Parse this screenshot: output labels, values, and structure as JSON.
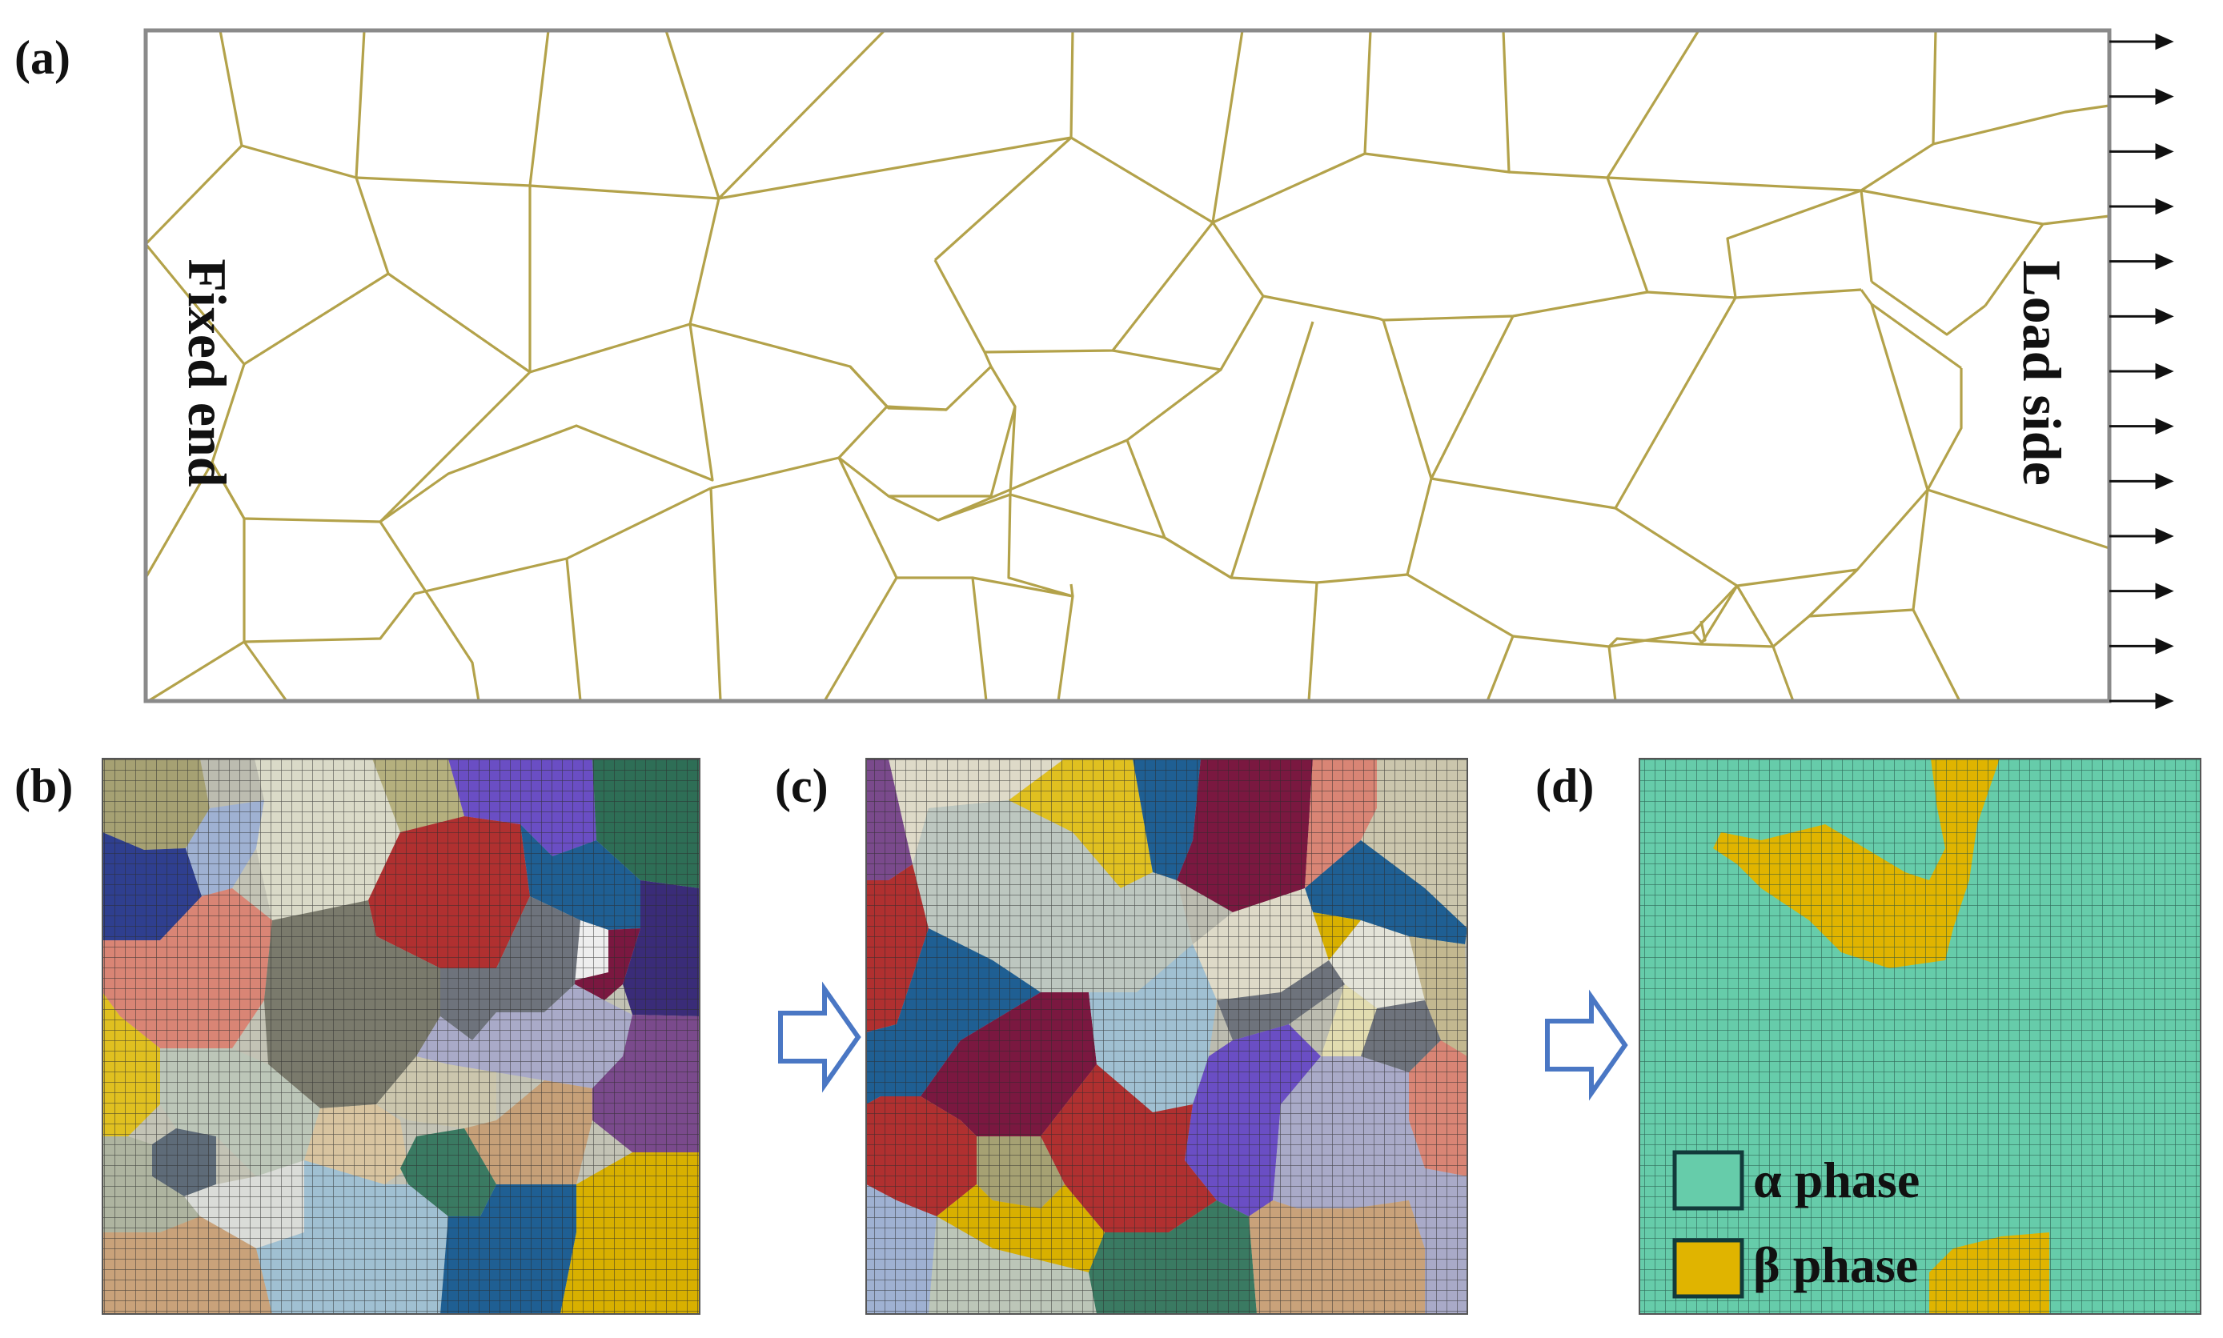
{
  "panels": {
    "a": {
      "label": "(a)",
      "fixed_end": "Fixed end",
      "load_side": "Load side"
    },
    "b": {
      "label": "(b)"
    },
    "c": {
      "label": "(c)"
    },
    "d": {
      "label": "(d)"
    }
  },
  "legend": [
    {
      "name": "α phase",
      "color": "#66ccaa"
    },
    {
      "name": "β phase",
      "color": "#e0b400"
    }
  ],
  "colors": {
    "grain_boundary": "#b3a24a",
    "frame": "#8a8a8a",
    "arrow": "#111111",
    "flow_arrow": "#4a77c4",
    "mesh_line": "#333333"
  }
}
